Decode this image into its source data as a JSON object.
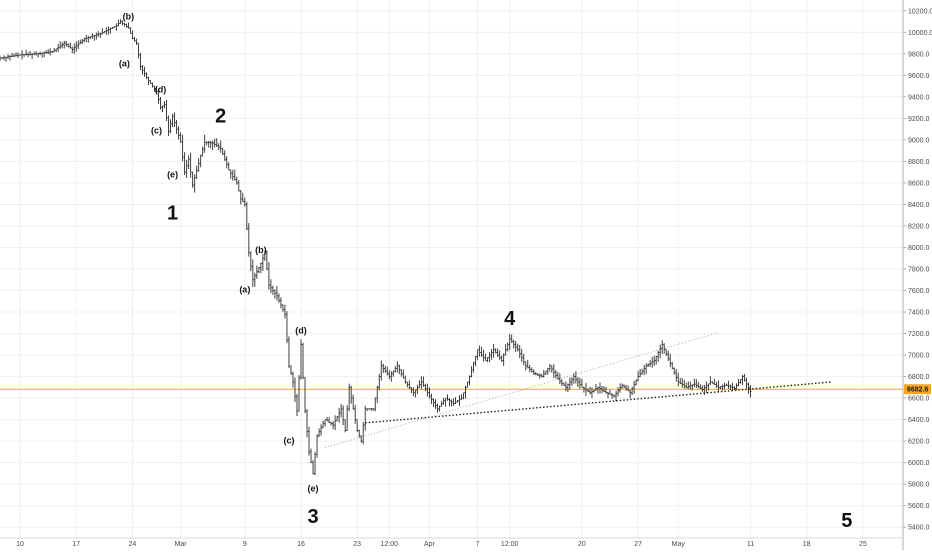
{
  "chart_data": {
    "type": "candlestick",
    "grid": true,
    "y_axis_position": "right",
    "ylim": [
      5300,
      10300
    ],
    "y_ticks": [
      10200,
      10000,
      9800,
      9600,
      9400,
      9200,
      9000,
      8800,
      8600,
      8400,
      8200,
      8000,
      7800,
      7600,
      7400,
      7200,
      7000,
      6800,
      6600,
      6400,
      6200,
      6000,
      5800,
      5600,
      5400
    ],
    "y_tick_labels": [
      "10200.0",
      "10000.0",
      "9800.0",
      "9600.0",
      "9400.0",
      "9200.0",
      "9000.0",
      "8800.0",
      "8600.0",
      "8400.0",
      "8200.0",
      "8000.0",
      "7800.0",
      "7600.0",
      "7400.0",
      "7200.0",
      "7000.0",
      "6800.0",
      "6600.0",
      "6400.0",
      "6200.0",
      "6000.0",
      "5800.0",
      "5600.0",
      "5400.0"
    ],
    "x_ticks": [
      {
        "label": "10",
        "day": 0
      },
      {
        "label": "17",
        "day": 7
      },
      {
        "label": "24",
        "day": 14
      },
      {
        "label": "Mar",
        "day": 20
      },
      {
        "label": "9",
        "day": 28
      },
      {
        "label": "16",
        "day": 35
      },
      {
        "label": "23",
        "day": 42
      },
      {
        "label": "12:00",
        "day": 46
      },
      {
        "label": "Apr",
        "day": 51
      },
      {
        "label": "7",
        "day": 57
      },
      {
        "label": "12:00",
        "day": 61
      },
      {
        "label": "20",
        "day": 70
      },
      {
        "label": "27",
        "day": 77
      },
      {
        "label": "May",
        "day": 82
      },
      {
        "label": "11",
        "day": 91
      },
      {
        "label": "18",
        "day": 98
      },
      {
        "label": "25",
        "day": 105
      }
    ],
    "xlim_days": [
      -2.5,
      110
    ],
    "current_price": 6682.6,
    "current_price_label": "6682.6",
    "price_line_color": "#f5a623",
    "price_path": [
      [
        -2.5,
        9760
      ],
      [
        0,
        9790
      ],
      [
        2,
        9800
      ],
      [
        4,
        9820
      ],
      [
        5.5,
        9900
      ],
      [
        6.5,
        9840
      ],
      [
        8,
        9940
      ],
      [
        10,
        9990
      ],
      [
        12,
        10060
      ],
      [
        12.5,
        10100
      ],
      [
        13.5,
        10040
      ],
      [
        14,
        9940
      ],
      [
        14.5,
        9900
      ],
      [
        15,
        9680
      ],
      [
        16,
        9550
      ],
      [
        17,
        9450
      ],
      [
        17.5,
        9300
      ],
      [
        18,
        9330
      ],
      [
        18.5,
        9080
      ],
      [
        19,
        9220
      ],
      [
        20,
        8980
      ],
      [
        20.5,
        8700
      ],
      [
        21,
        8820
      ],
      [
        21.5,
        8580
      ],
      [
        22.5,
        8850
      ],
      [
        23,
        8980
      ],
      [
        24,
        8970
      ],
      [
        25,
        8920
      ],
      [
        26,
        8720
      ],
      [
        27,
        8600
      ],
      [
        27.5,
        8450
      ],
      [
        28,
        8400
      ],
      [
        28.5,
        7950
      ],
      [
        29,
        7700
      ],
      [
        30,
        7850
      ],
      [
        30.5,
        7950
      ],
      [
        31,
        7650
      ],
      [
        32,
        7550
      ],
      [
        33,
        7380
      ],
      [
        33.5,
        6900
      ],
      [
        34,
        6750
      ],
      [
        34.5,
        6480
      ],
      [
        35,
        7100
      ],
      [
        35.5,
        6480
      ],
      [
        36,
        6100
      ],
      [
        36.5,
        5900
      ],
      [
        37,
        6250
      ],
      [
        38,
        6400
      ],
      [
        39,
        6350
      ],
      [
        40,
        6500
      ],
      [
        40.5,
        6300
      ],
      [
        41,
        6700
      ],
      [
        42,
        6300
      ],
      [
        42.5,
        6200
      ],
      [
        43,
        6500
      ],
      [
        44,
        6500
      ],
      [
        45,
        6900
      ],
      [
        46,
        6800
      ],
      [
        47,
        6900
      ],
      [
        48,
        6750
      ],
      [
        49,
        6650
      ],
      [
        50,
        6750
      ],
      [
        51,
        6620
      ],
      [
        52,
        6500
      ],
      [
        53,
        6600
      ],
      [
        54,
        6550
      ],
      [
        55,
        6600
      ],
      [
        56,
        6800
      ],
      [
        57,
        7050
      ],
      [
        58,
        6950
      ],
      [
        59,
        7050
      ],
      [
        60,
        6950
      ],
      [
        61,
        7150
      ],
      [
        62,
        7050
      ],
      [
        63,
        6900
      ],
      [
        64,
        6830
      ],
      [
        65,
        6800
      ],
      [
        66,
        6900
      ],
      [
        67,
        6780
      ],
      [
        68,
        6700
      ],
      [
        69,
        6800
      ],
      [
        70,
        6700
      ],
      [
        71,
        6650
      ],
      [
        72,
        6700
      ],
      [
        73,
        6650
      ],
      [
        74,
        6620
      ],
      [
        75,
        6720
      ],
      [
        76,
        6650
      ],
      [
        77,
        6800
      ],
      [
        78,
        6900
      ],
      [
        79,
        6950
      ],
      [
        80,
        7100
      ],
      [
        81,
        6920
      ],
      [
        82,
        6750
      ],
      [
        83,
        6700
      ],
      [
        84,
        6730
      ],
      [
        85,
        6680
      ],
      [
        86,
        6750
      ],
      [
        87,
        6700
      ],
      [
        88,
        6720
      ],
      [
        89,
        6690
      ],
      [
        90,
        6800
      ],
      [
        91,
        6660
      ]
    ],
    "trendlines": [
      {
        "style": "dotted-heavy",
        "from": [
          43,
          6370
        ],
        "to": [
          101,
          6750
        ]
      },
      {
        "style": "dotted-light",
        "from": [
          38,
          6140
        ],
        "to": [
          87,
          7210
        ]
      }
    ],
    "annotations": [
      {
        "text": "(b)",
        "day": 13.5,
        "price": 10120,
        "kind": "minor"
      },
      {
        "text": "(a)",
        "day": 13,
        "price": 9680,
        "kind": "minor"
      },
      {
        "text": "(d)",
        "day": 17.5,
        "price": 9440,
        "kind": "minor"
      },
      {
        "text": "(c)",
        "day": 17,
        "price": 9060,
        "kind": "minor"
      },
      {
        "text": "(e)",
        "day": 19,
        "price": 8650,
        "kind": "minor"
      },
      {
        "text": "1",
        "day": 19,
        "price": 8260,
        "kind": "major"
      },
      {
        "text": "2",
        "day": 25,
        "price": 9160,
        "kind": "major"
      },
      {
        "text": "(b)",
        "day": 30,
        "price": 7950,
        "kind": "minor"
      },
      {
        "text": "(a)",
        "day": 28,
        "price": 7580,
        "kind": "minor"
      },
      {
        "text": "(d)",
        "day": 35,
        "price": 7200,
        "kind": "minor"
      },
      {
        "text": "(c)",
        "day": 33.5,
        "price": 6180,
        "kind": "minor"
      },
      {
        "text": "(e)",
        "day": 36.5,
        "price": 5730,
        "kind": "minor"
      },
      {
        "text": "3",
        "day": 36.5,
        "price": 5440,
        "kind": "major"
      },
      {
        "text": "4",
        "day": 61,
        "price": 7280,
        "kind": "major"
      },
      {
        "text": "5",
        "day": 103,
        "price": 5400,
        "kind": "major"
      }
    ]
  }
}
